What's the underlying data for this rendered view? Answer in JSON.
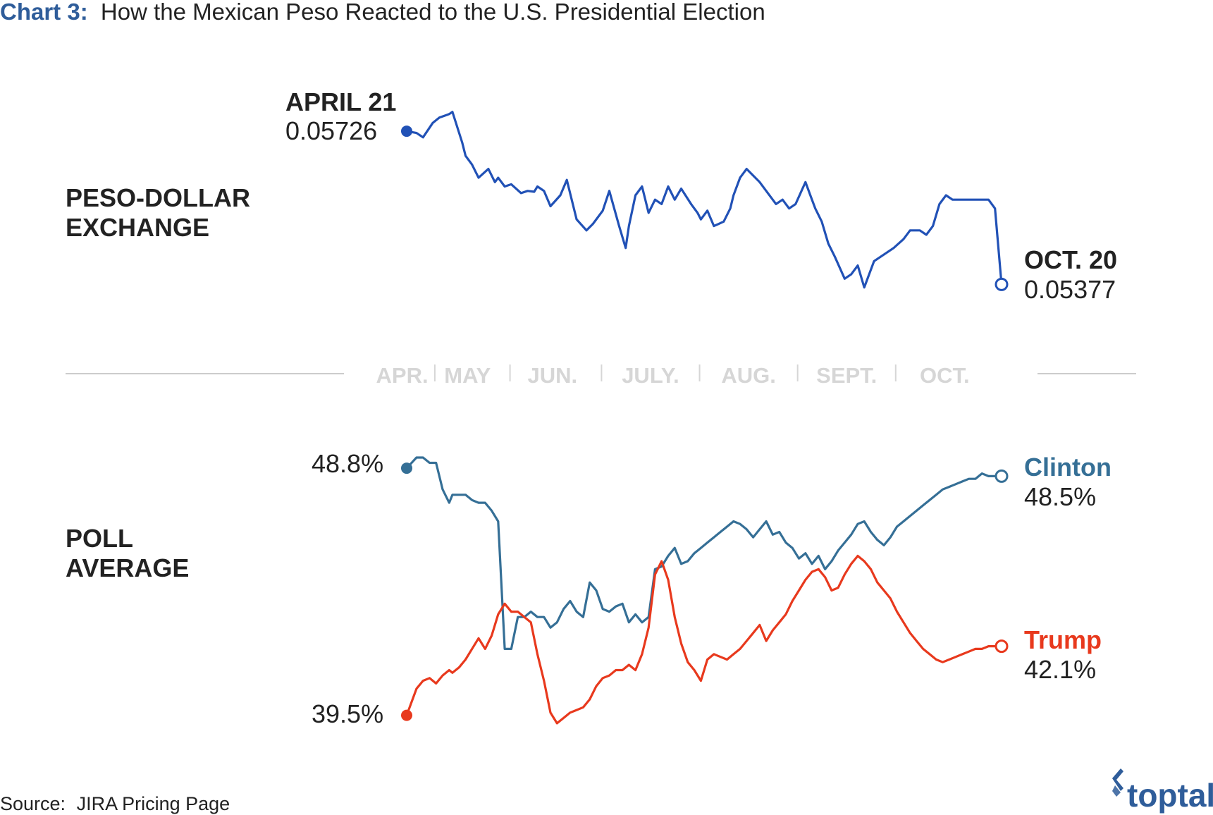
{
  "title": {
    "prefix": "Chart 3:",
    "text": "How the Mexican Peso Reacted to the U.S. Presidential Election"
  },
  "source": {
    "label": "Source:",
    "text": "JIRA Pricing Page"
  },
  "logo": {
    "text": "toptal",
    "icon": "toptal-logo-icon"
  },
  "colors": {
    "title_blue": "#2f5d9a",
    "peso_line": "#2151b6",
    "clinton": "#356f96",
    "trump": "#e8391d",
    "text": "#222222",
    "axis": "#cccccc",
    "month_label": "#d6d6d6"
  },
  "chart_data": [
    {
      "type": "line",
      "section_label_line1": "PESO-DOLLAR",
      "section_label_line2": "EXCHANGE",
      "start": {
        "date": "APRIL 21",
        "value": 0.05726,
        "value_label": "0.05726"
      },
      "end": {
        "date": "OCT. 20",
        "value": 0.05377,
        "value_label": "0.05377"
      },
      "x_range": [
        0,
        182
      ],
      "ylim": [
        0.0527,
        0.058
      ],
      "x": [
        0,
        3,
        5,
        8,
        10,
        13,
        14,
        17,
        18,
        20,
        22,
        25,
        27,
        28,
        30,
        32,
        35,
        37,
        39,
        40,
        42,
        44,
        47,
        49,
        52,
        55,
        57,
        60,
        62,
        65,
        67,
        68,
        70,
        72,
        74,
        76,
        78,
        80,
        82,
        84,
        87,
        89,
        90,
        92,
        94,
        97,
        99,
        100,
        102,
        104,
        106,
        108,
        110,
        113,
        115,
        117,
        119,
        122,
        124,
        125,
        127,
        129,
        131,
        134,
        136,
        138,
        140,
        143,
        145,
        147,
        149,
        152,
        154,
        157,
        159,
        161,
        163,
        165,
        167,
        170,
        172,
        174,
        176,
        178,
        180,
        182
      ],
      "y": [
        0.05726,
        0.05722,
        0.05712,
        0.05745,
        0.05757,
        0.05765,
        0.0577,
        0.057,
        0.0567,
        0.0565,
        0.0562,
        0.0564,
        0.0561,
        0.0562,
        0.056,
        0.05605,
        0.05585,
        0.0559,
        0.05588,
        0.056,
        0.0559,
        0.05555,
        0.0558,
        0.05615,
        0.05525,
        0.055,
        0.05515,
        0.05545,
        0.0559,
        0.0551,
        0.0546,
        0.0551,
        0.0558,
        0.056,
        0.0554,
        0.0557,
        0.0556,
        0.056,
        0.0557,
        0.05595,
        0.0556,
        0.0554,
        0.05525,
        0.05545,
        0.0551,
        0.0552,
        0.0555,
        0.0558,
        0.0562,
        0.0564,
        0.05625,
        0.0561,
        0.0559,
        0.0556,
        0.0557,
        0.0555,
        0.0556,
        0.0561,
        0.0557,
        0.0555,
        0.0552,
        0.0547,
        0.0544,
        0.0539,
        0.054,
        0.0542,
        0.0537,
        0.0543,
        0.0544,
        0.0545,
        0.0546,
        0.0548,
        0.055,
        0.055,
        0.0549,
        0.0551,
        0.0556,
        0.0558,
        0.0557,
        0.0557,
        0.0557,
        0.0557,
        0.0557,
        0.0557,
        0.0555,
        0.05377
      ]
    },
    {
      "type": "line",
      "section_label_line1": "POLL",
      "section_label_line2": "AVERAGE",
      "x_range": [
        0,
        182
      ],
      "ylim": [
        37.5,
        50.5
      ],
      "series": [
        {
          "name": "Clinton",
          "start_label": "48.8%",
          "end_label": "48.5%",
          "x": [
            0,
            3,
            5,
            7,
            9,
            11,
            13,
            14,
            16,
            18,
            20,
            22,
            24,
            26,
            28,
            30,
            32,
            34,
            36,
            38,
            40,
            42,
            44,
            46,
            48,
            50,
            52,
            54,
            56,
            58,
            60,
            62,
            64,
            66,
            68,
            70,
            72,
            74,
            76,
            78,
            80,
            82,
            84,
            86,
            88,
            90,
            92,
            94,
            96,
            98,
            100,
            102,
            104,
            106,
            108,
            110,
            112,
            114,
            116,
            118,
            120,
            122,
            124,
            126,
            128,
            130,
            132,
            134,
            136,
            138,
            140,
            142,
            144,
            146,
            148,
            150,
            152,
            154,
            156,
            158,
            160,
            162,
            164,
            166,
            168,
            170,
            172,
            174,
            176,
            178,
            180,
            182
          ],
          "y": [
            48.8,
            49.2,
            49.2,
            49.0,
            49.0,
            48.0,
            47.5,
            47.8,
            47.8,
            47.8,
            47.6,
            47.5,
            47.5,
            47.2,
            46.8,
            42.0,
            42.0,
            43.2,
            43.2,
            43.4,
            43.2,
            43.2,
            42.8,
            43.0,
            43.5,
            43.8,
            43.4,
            43.2,
            44.5,
            44.2,
            43.5,
            43.4,
            43.6,
            43.7,
            43.0,
            43.3,
            43.0,
            43.2,
            45.0,
            45.1,
            45.5,
            45.8,
            45.2,
            45.3,
            45.6,
            45.8,
            46.0,
            46.2,
            46.4,
            46.6,
            46.8,
            46.7,
            46.5,
            46.2,
            46.5,
            46.8,
            46.3,
            46.4,
            46.0,
            45.8,
            45.4,
            45.6,
            45.2,
            45.5,
            45.0,
            45.3,
            45.7,
            46.0,
            46.3,
            46.7,
            46.8,
            46.4,
            46.1,
            45.9,
            46.2,
            46.6,
            46.8,
            47.0,
            47.2,
            47.4,
            47.6,
            47.8,
            48.0,
            48.1,
            48.2,
            48.3,
            48.4,
            48.4,
            48.6,
            48.5,
            48.5,
            48.5
          ]
        },
        {
          "name": "Trump",
          "start_label": "39.5%",
          "end_label": "42.1%",
          "x": [
            0,
            3,
            5,
            7,
            9,
            11,
            13,
            14,
            16,
            18,
            20,
            22,
            24,
            26,
            28,
            30,
            32,
            34,
            36,
            38,
            40,
            42,
            44,
            46,
            48,
            50,
            52,
            54,
            56,
            58,
            60,
            62,
            64,
            66,
            68,
            70,
            72,
            74,
            76,
            78,
            80,
            82,
            84,
            86,
            88,
            90,
            92,
            94,
            96,
            98,
            100,
            102,
            104,
            106,
            108,
            110,
            112,
            114,
            116,
            118,
            120,
            122,
            124,
            126,
            128,
            130,
            132,
            134,
            136,
            138,
            140,
            142,
            144,
            146,
            148,
            150,
            152,
            154,
            156,
            158,
            160,
            162,
            164,
            166,
            168,
            170,
            172,
            174,
            176,
            178,
            180,
            182
          ],
          "y": [
            39.5,
            40.5,
            40.8,
            40.9,
            40.7,
            41.0,
            41.2,
            41.1,
            41.3,
            41.6,
            42.0,
            42.4,
            42.0,
            42.5,
            43.3,
            43.7,
            43.4,
            43.4,
            43.2,
            43.0,
            41.8,
            40.8,
            39.6,
            39.2,
            39.4,
            39.6,
            39.7,
            39.8,
            40.1,
            40.6,
            40.9,
            41.0,
            41.2,
            41.2,
            41.4,
            41.2,
            41.8,
            42.8,
            44.8,
            45.3,
            44.6,
            43.2,
            42.2,
            41.5,
            41.2,
            40.8,
            41.6,
            41.8,
            41.7,
            41.6,
            41.8,
            42.0,
            42.3,
            42.6,
            42.9,
            42.3,
            42.7,
            43.0,
            43.3,
            43.8,
            44.2,
            44.6,
            44.9,
            45.0,
            44.7,
            44.2,
            44.3,
            44.8,
            45.2,
            45.5,
            45.3,
            45.0,
            44.5,
            44.2,
            43.9,
            43.4,
            43.0,
            42.6,
            42.3,
            42.0,
            41.8,
            41.6,
            41.5,
            41.6,
            41.7,
            41.8,
            41.9,
            42.0,
            42.0,
            42.1,
            42.1,
            42.1
          ]
        }
      ]
    }
  ],
  "x_axis": {
    "type": "date",
    "months": [
      {
        "label": "APR.",
        "center_day": 4
      },
      {
        "label": "MAY",
        "center_day": 24
      },
      {
        "label": "JUN.",
        "center_day": 50
      },
      {
        "label": "JULY.",
        "center_day": 80
      },
      {
        "label": "AUG.",
        "center_day": 110
      },
      {
        "label": "SEPT.",
        "center_day": 140
      },
      {
        "label": "OCT.",
        "center_day": 170
      }
    ]
  }
}
